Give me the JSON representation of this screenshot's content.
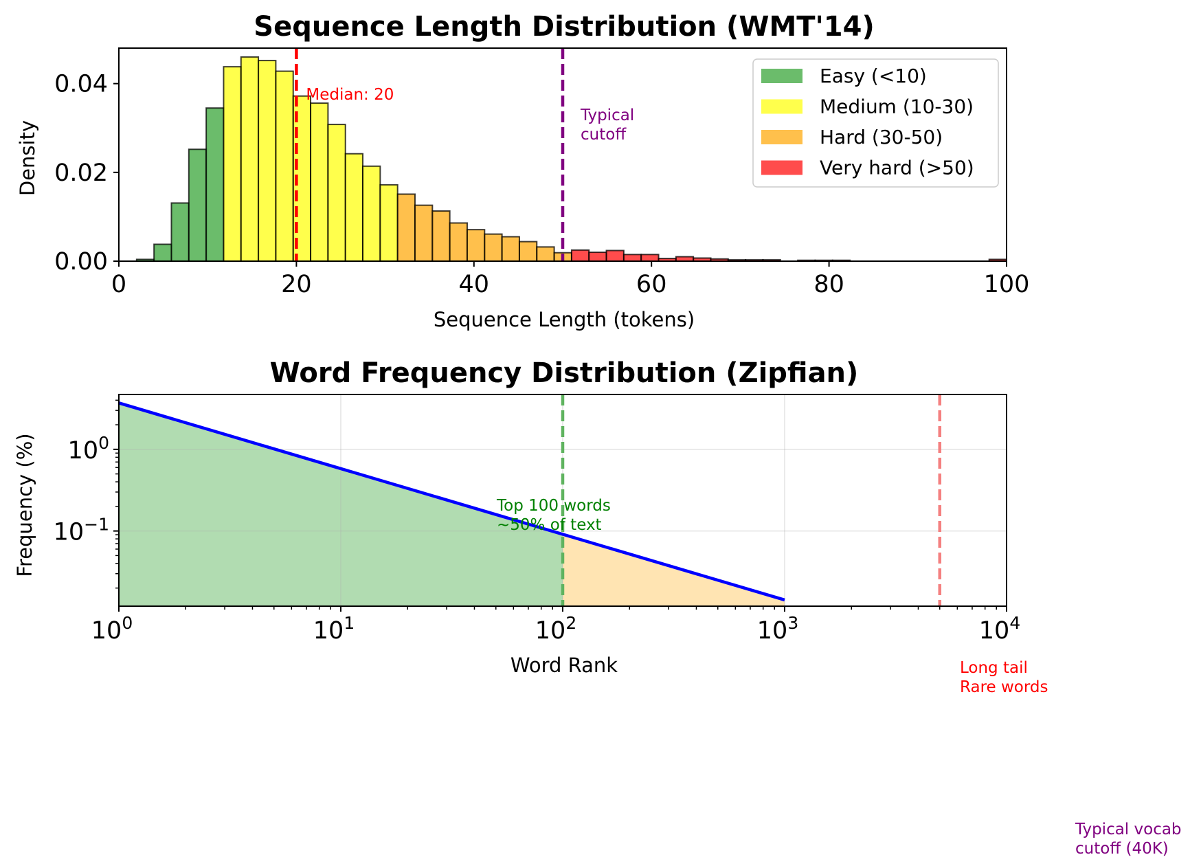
{
  "chart_data": [
    {
      "type": "bar",
      "title": "Sequence Length Distribution (WMT'14)",
      "xlabel": "Sequence Length (tokens)",
      "ylabel": "Density",
      "xlim": [
        0,
        100
      ],
      "ylim": [
        0,
        0.048
      ],
      "xticks": [
        "0",
        "20",
        "40",
        "60",
        "80",
        "100"
      ],
      "yticks": [
        "0.00",
        "0.02",
        "0.04"
      ],
      "bin_width": 1.96,
      "bins": [
        {
          "x": 2.0,
          "y": 0.0004,
          "cls": "easy"
        },
        {
          "x": 3.96,
          "y": 0.0038,
          "cls": "easy"
        },
        {
          "x": 5.92,
          "y": 0.0131,
          "cls": "easy"
        },
        {
          "x": 7.88,
          "y": 0.0252,
          "cls": "easy"
        },
        {
          "x": 9.84,
          "y": 0.0345,
          "cls": "easy"
        },
        {
          "x": 11.8,
          "y": 0.0438,
          "cls": "medium"
        },
        {
          "x": 13.76,
          "y": 0.046,
          "cls": "medium"
        },
        {
          "x": 15.72,
          "y": 0.0452,
          "cls": "medium"
        },
        {
          "x": 17.68,
          "y": 0.0428,
          "cls": "medium"
        },
        {
          "x": 19.64,
          "y": 0.0372,
          "cls": "medium"
        },
        {
          "x": 21.6,
          "y": 0.0356,
          "cls": "medium"
        },
        {
          "x": 23.56,
          "y": 0.0308,
          "cls": "medium"
        },
        {
          "x": 25.52,
          "y": 0.0242,
          "cls": "medium"
        },
        {
          "x": 27.48,
          "y": 0.0214,
          "cls": "medium"
        },
        {
          "x": 29.44,
          "y": 0.0172,
          "cls": "medium"
        },
        {
          "x": 31.4,
          "y": 0.0151,
          "cls": "hard"
        },
        {
          "x": 33.36,
          "y": 0.0126,
          "cls": "hard"
        },
        {
          "x": 35.32,
          "y": 0.0113,
          "cls": "hard"
        },
        {
          "x": 37.28,
          "y": 0.0086,
          "cls": "hard"
        },
        {
          "x": 39.24,
          "y": 0.0071,
          "cls": "hard"
        },
        {
          "x": 41.2,
          "y": 0.0061,
          "cls": "hard"
        },
        {
          "x": 43.16,
          "y": 0.0055,
          "cls": "hard"
        },
        {
          "x": 45.12,
          "y": 0.0044,
          "cls": "hard"
        },
        {
          "x": 47.08,
          "y": 0.0032,
          "cls": "hard"
        },
        {
          "x": 49.04,
          "y": 0.0019,
          "cls": "hard"
        },
        {
          "x": 51.0,
          "y": 0.0025,
          "cls": "veryhard"
        },
        {
          "x": 52.96,
          "y": 0.002,
          "cls": "veryhard"
        },
        {
          "x": 54.92,
          "y": 0.0024,
          "cls": "veryhard"
        },
        {
          "x": 56.88,
          "y": 0.0015,
          "cls": "veryhard"
        },
        {
          "x": 58.84,
          "y": 0.0015,
          "cls": "veryhard"
        },
        {
          "x": 60.8,
          "y": 0.0006,
          "cls": "veryhard"
        },
        {
          "x": 62.76,
          "y": 0.001,
          "cls": "veryhard"
        },
        {
          "x": 64.72,
          "y": 0.0007,
          "cls": "veryhard"
        },
        {
          "x": 66.68,
          "y": 0.0005,
          "cls": "veryhard"
        },
        {
          "x": 68.64,
          "y": 0.0003,
          "cls": "veryhard"
        },
        {
          "x": 70.6,
          "y": 0.0003,
          "cls": "veryhard"
        },
        {
          "x": 72.56,
          "y": 0.0003,
          "cls": "veryhard"
        },
        {
          "x": 76.48,
          "y": 0.0002,
          "cls": "veryhard"
        },
        {
          "x": 78.44,
          "y": 0.0002,
          "cls": "veryhard"
        },
        {
          "x": 80.4,
          "y": 0.0002,
          "cls": "veryhard"
        },
        {
          "x": 98.04,
          "y": 0.0004,
          "cls": "veryhard"
        }
      ],
      "legend": {
        "placement": "top-right",
        "items": [
          {
            "key": "easy",
            "label": "Easy (<10)",
            "color": "#2ca02c"
          },
          {
            "key": "medium",
            "label": "Medium (10-30)",
            "color": "#ffff00"
          },
          {
            "key": "hard",
            "label": "Hard (30-50)",
            "color": "#ffa500"
          },
          {
            "key": "veryhard",
            "label": "Very hard (>50)",
            "color": "#ff0000"
          }
        ]
      },
      "reference_lines": [
        {
          "x": 20,
          "color": "#ff0000",
          "label_lines": [
            "Median: 20"
          ]
        },
        {
          "x": 50,
          "color": "#800080",
          "label_lines": [
            "Typical",
            "cutoff"
          ]
        }
      ],
      "grid": false
    },
    {
      "type": "line",
      "title": "Word Frequency Distribution (Zipfian)",
      "xlabel": "Word Rank",
      "ylabel": "Frequency (%)",
      "xscale": "log",
      "yscale": "log",
      "xlim": [
        1,
        10000
      ],
      "ylim": [
        0.012,
        4.7
      ],
      "xticks": [
        {
          "base": "10",
          "exp": "0"
        },
        {
          "base": "10",
          "exp": "1"
        },
        {
          "base": "10",
          "exp": "2"
        },
        {
          "base": "10",
          "exp": "3"
        },
        {
          "base": "10",
          "exp": "4"
        }
      ],
      "yticks": [
        {
          "base": "10",
          "exp": "0",
          "value": 1
        },
        {
          "base": "10",
          "exp": "−1",
          "value": 0.1
        }
      ],
      "series": [
        {
          "x": [
            1,
            1000
          ],
          "y": [
            3.7,
            0.0143
          ],
          "color": "#0000ff"
        }
      ],
      "fills": [
        {
          "from": 1,
          "to": 100,
          "color": "#2ca02c",
          "opacity": 0.37
        },
        {
          "from": 100,
          "to": 1000,
          "color": "#ffa500",
          "opacity": 0.3
        }
      ],
      "reference_lines": [
        {
          "x": 100,
          "color": "#5fb35f",
          "label_lines": [
            "Top 100 words",
            "~50% of text"
          ],
          "label_color": "#008000"
        },
        {
          "x": 5000,
          "color": "#f48080",
          "label_lines": [
            "Long tail",
            "Rare words"
          ],
          "label_color": "#ff0000"
        }
      ],
      "footnote": {
        "lines": [
          "Typical vocab",
          "cutoff (40K)"
        ],
        "color": "#800080"
      },
      "grid": true
    }
  ]
}
